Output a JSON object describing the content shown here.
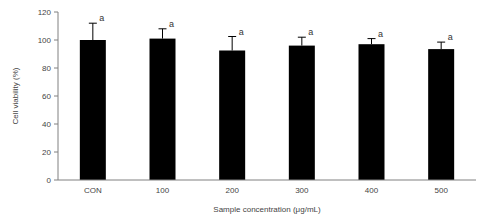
{
  "chart_data": {
    "type": "bar",
    "x_label": "Sample concentration (μg/mL)",
    "y_label": "Cell viability (%)",
    "categories": [
      "CON",
      "100",
      "200",
      "300",
      "400",
      "500"
    ],
    "values": [
      100,
      101,
      92.5,
      96,
      97,
      93.5
    ],
    "errors": [
      12,
      7,
      10,
      6,
      4,
      5
    ],
    "letters": [
      "a",
      "a",
      "a",
      "a",
      "a",
      "a"
    ],
    "color": "#000000",
    "ylim": [
      0,
      120
    ],
    "yticks": [
      0,
      20,
      40,
      60,
      80,
      100,
      120
    ],
    "grid": false
  }
}
